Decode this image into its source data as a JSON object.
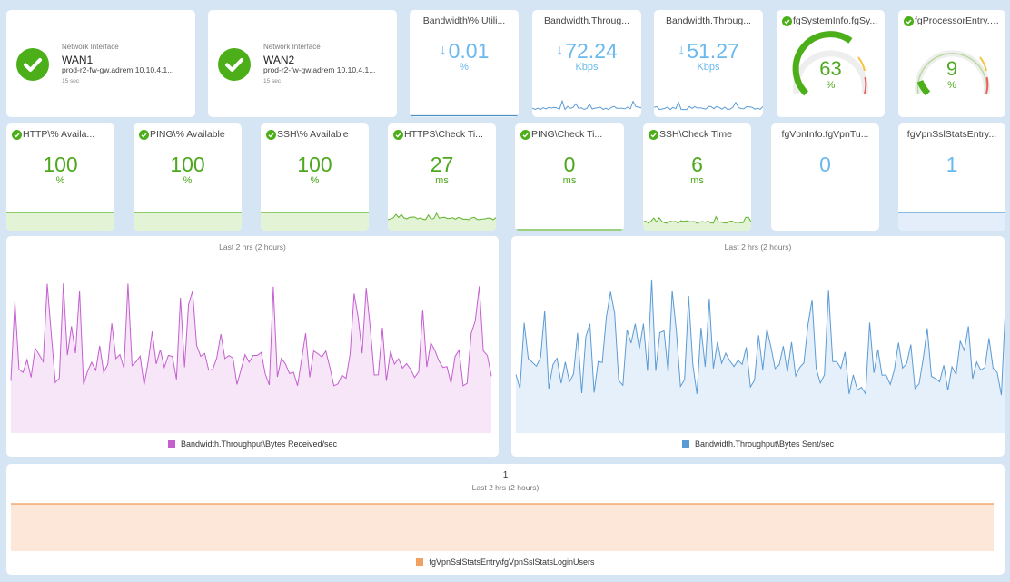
{
  "network_interfaces": [
    {
      "category": "Network Interface",
      "name": "WAN1",
      "host": "prod-r2-fw-gw.adrem 10.10.4.1...",
      "age": "15 sec"
    },
    {
      "category": "Network Interface",
      "name": "WAN2",
      "host": "prod-r2-fw-gw.adrem 10.10.4.1...",
      "age": "15 sec"
    }
  ],
  "top_metrics": [
    {
      "title": "Bandwidth\\% Utili...",
      "value": "0.01",
      "unit": "%",
      "arrow": "↓"
    },
    {
      "title": "Bandwidth.Throug...",
      "value": "72.24",
      "unit": "Kbps",
      "arrow": "↓"
    },
    {
      "title": "Bandwidth.Throug...",
      "value": "51.27",
      "unit": "Kbps",
      "arrow": "↓"
    }
  ],
  "gauges": [
    {
      "title": "fgSystemInfo.fgSy...",
      "value": "63",
      "unit": "%",
      "fraction": 0.63
    },
    {
      "title": "fgProcessorEntry.f...",
      "value": "9",
      "unit": "%",
      "fraction": 0.09
    }
  ],
  "row2_metrics": [
    {
      "title": "HTTP\\% Availa...",
      "value": "100",
      "unit": "%"
    },
    {
      "title": "PING\\% Available",
      "value": "100",
      "unit": "%"
    },
    {
      "title": "SSH\\% Available",
      "value": "100",
      "unit": "%"
    },
    {
      "title": "HTTPS\\Check Ti...",
      "value": "27",
      "unit": "ms"
    },
    {
      "title": "PING\\Check Ti...",
      "value": "0",
      "unit": "ms"
    },
    {
      "title": "SSH\\Check Time",
      "value": "6",
      "unit": "ms"
    },
    {
      "title": "fgVpnInfo.fgVpnTu...",
      "value": "0",
      "unit": ""
    },
    {
      "title": "fgVpnSslStatsEntry...",
      "value": "1",
      "unit": ""
    }
  ],
  "charts": {
    "received": {
      "subtitle": "Last 2 hrs (2 hours)",
      "legend": "Bandwidth.Throughput\\Bytes Received/sec",
      "color": "#c45fd0"
    },
    "sent": {
      "subtitle": "Last 2 hrs (2 hours)",
      "legend": "Bandwidth.Throughput\\Bytes Sent/sec",
      "color": "#5b9bd5"
    },
    "ssl": {
      "value": "1",
      "subtitle": "Last 2 hrs (2 hours)",
      "legend": "fgVpnSslStatsEntry\\fgVpnSslStatsLoginUsers",
      "color": "#f0a060"
    }
  },
  "colors": {
    "accent_green": "#4caf1a",
    "value_blue": "#6ab9ee",
    "value_green": "#4ca81c",
    "background": "#d6e5f4"
  }
}
